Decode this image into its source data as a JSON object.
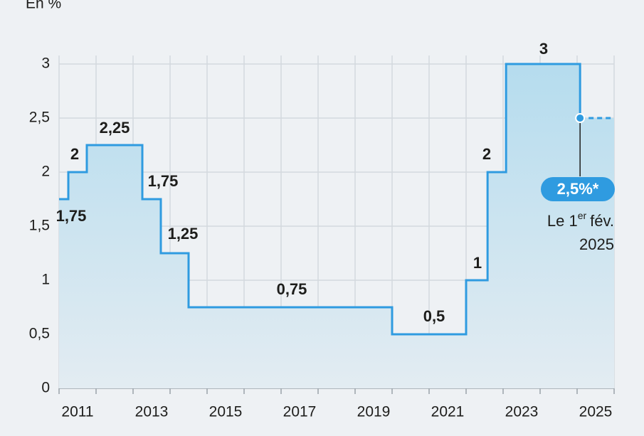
{
  "chart_data": {
    "type": "step",
    "unit_label": "En %",
    "x": [
      2011,
      2011.25,
      2011.75,
      2013.25,
      2013.75,
      2014.5,
      2020,
      2022,
      2022.58,
      2023.08,
      2025.08
    ],
    "series": [
      {
        "color": "#2f9be0",
        "values": [
          1.75,
          2,
          2.25,
          1.75,
          1.25,
          0.75,
          0.5,
          1,
          2,
          3,
          2.5
        ],
        "value_labels": [
          "1,75",
          "2",
          "2,25",
          "1,75",
          "1,25",
          "0,75",
          "0,5",
          "1",
          "2",
          "3",
          "2,5%*"
        ]
      }
    ],
    "note": {
      "prefix": "Le 1",
      "sup": "er",
      "suffix": "fév.",
      "line2": "2025"
    },
    "xlim": [
      2011,
      2026
    ],
    "xticks": [
      2011,
      2013,
      2015,
      2017,
      2019,
      2021,
      2023,
      2025
    ],
    "xgrid": [
      2011,
      2012,
      2013,
      2014,
      2015,
      2016,
      2017,
      2018,
      2019,
      2020,
      2021,
      2022,
      2023,
      2024,
      2025,
      2026
    ],
    "ylim": [
      0,
      3
    ],
    "yticks": [
      0,
      {
        "value": 0.5,
        "label": "0,5"
      },
      1,
      {
        "value": 1.5,
        "label": "1,5"
      },
      2,
      {
        "value": 2.5,
        "label": "2,5"
      },
      3
    ],
    "grid": true
  }
}
